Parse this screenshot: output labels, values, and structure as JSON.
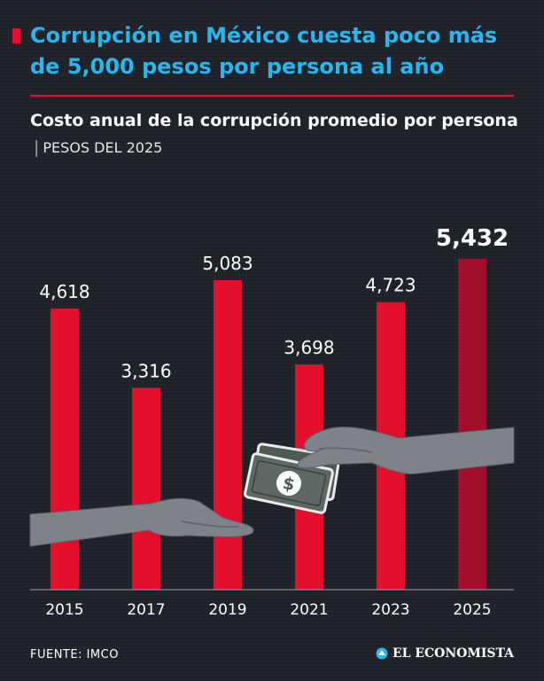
{
  "headline": "Corrupción en México cuesta poco más de 5,000 pesos por persona al año",
  "subtitle": {
    "title": "Costo anual de la corrupción promedio por persona",
    "separator": "|",
    "unit": "PESOS DEL 2025"
  },
  "chart_data": {
    "type": "bar",
    "categories": [
      "2015",
      "2017",
      "2019",
      "2021",
      "2023",
      "2025"
    ],
    "values": [
      4618,
      3316,
      5083,
      3698,
      4723,
      5432
    ],
    "value_labels": [
      "4,618",
      "3,316",
      "5,083",
      "3,698",
      "4,723",
      "5,432"
    ],
    "highlight_index": 5,
    "ylim": [
      0,
      5432
    ],
    "grid": false,
    "legend": "none",
    "colors": {
      "bar": "#e30f2d",
      "highlight": "#a30e2b"
    }
  },
  "illustration": {
    "icon": "hand-giving-money-illustration",
    "bill_symbol": "$"
  },
  "footer": {
    "source": "FUENTE:  IMCO",
    "brand": "EL ECONOMISTA",
    "brand_icon": "el-economista-logo-icon"
  },
  "colors": {
    "background": "#1f2229",
    "headline": "#29b6ee",
    "accent": "#e30f2d"
  }
}
